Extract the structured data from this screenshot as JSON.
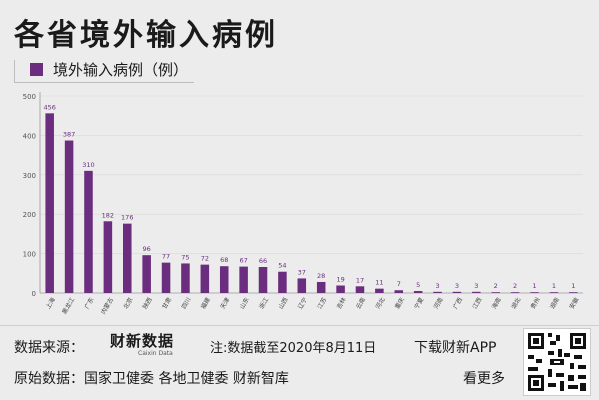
{
  "header": {
    "title": "各省境外输入病例",
    "legend_label": "境外输入病例（例）"
  },
  "colors": {
    "bar": "#6b2d7e",
    "label": "#6b2d7e",
    "axis": "#9a9a9a",
    "grid": "#d8d8d8"
  },
  "chart_data": {
    "type": "bar",
    "title": "各省境外输入病例",
    "ylim": [
      0,
      500
    ],
    "yticks": [
      0,
      100,
      200,
      300,
      400,
      500
    ],
    "grid": true,
    "legend": "top-left",
    "series": [
      {
        "name": "境外输入病例（例）",
        "values": [
          456,
          387,
          310,
          182,
          176,
          96,
          77,
          75,
          72,
          68,
          67,
          66,
          54,
          37,
          28,
          19,
          17,
          11,
          7,
          5,
          3,
          3,
          3,
          2,
          2,
          1,
          1,
          1
        ]
      }
    ],
    "categories": [
      "上海",
      "黑龙江",
      "广东",
      "内蒙古",
      "北京",
      "陕西",
      "甘肃",
      "四川",
      "福建",
      "天津",
      "山东",
      "浙江",
      "山西",
      "辽宁",
      "江苏",
      "吉林",
      "云南",
      "河北",
      "重庆",
      "宁夏",
      "河南",
      "广西",
      "江西",
      "海南",
      "湖北",
      "贵州",
      "湖南",
      "安徽"
    ]
  },
  "footer": {
    "source_label": "数据来源：",
    "brand_cn": "财新数据",
    "brand_en": "Caixin Data",
    "note": "注:数据截至2020年8月11日",
    "download": "下载财新APP",
    "origin": "原始数据：国家卫健委 各地卫健委 财新智库",
    "more": "看更多"
  }
}
